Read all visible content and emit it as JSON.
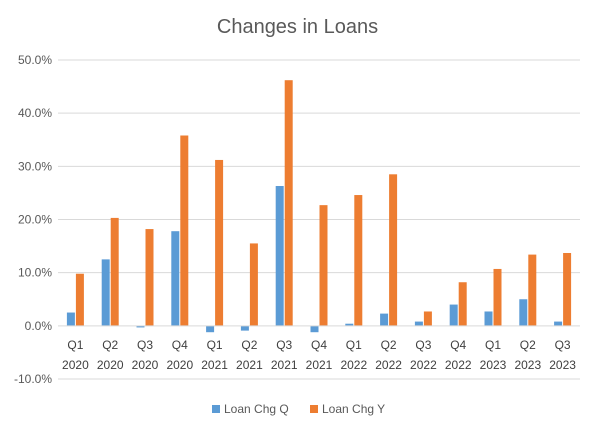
{
  "chart_data": {
    "type": "bar",
    "title": "Changes in Loans",
    "xlabel": "",
    "ylabel": "",
    "ylim": [
      -10,
      50
    ],
    "yticks": [
      -10,
      0,
      10,
      20,
      30,
      40,
      50
    ],
    "ytick_labels": [
      "-10.0%",
      "0.0%",
      "10.0%",
      "20.0%",
      "30.0%",
      "40.0%",
      "50.0%"
    ],
    "grid": true,
    "legend_position": "bottom",
    "categories": [
      [
        "Q1",
        "2020"
      ],
      [
        "Q2",
        "2020"
      ],
      [
        "Q3",
        "2020"
      ],
      [
        "Q4",
        "2020"
      ],
      [
        "Q1",
        "2021"
      ],
      [
        "Q2",
        "2021"
      ],
      [
        "Q3",
        "2021"
      ],
      [
        "Q4",
        "2021"
      ],
      [
        "Q1",
        "2022"
      ],
      [
        "Q2",
        "2022"
      ],
      [
        "Q3",
        "2022"
      ],
      [
        "Q4",
        "2022"
      ],
      [
        "Q1",
        "2023"
      ],
      [
        "Q2",
        "2023"
      ],
      [
        "Q3",
        "2023"
      ]
    ],
    "series": [
      {
        "name": "Loan Chg Q",
        "color": "#5b9bd5",
        "values": [
          2.5,
          12.5,
          -0.3,
          17.8,
          -1.2,
          -0.9,
          26.3,
          -1.2,
          0.4,
          2.3,
          0.8,
          4.0,
          2.7,
          5.0,
          0.8
        ]
      },
      {
        "name": "Loan Chg Y",
        "color": "#ed7d31",
        "values": [
          9.8,
          20.3,
          18.2,
          35.8,
          31.2,
          15.5,
          46.2,
          22.7,
          24.6,
          28.5,
          2.7,
          8.2,
          10.7,
          13.4,
          13.7
        ]
      }
    ]
  }
}
